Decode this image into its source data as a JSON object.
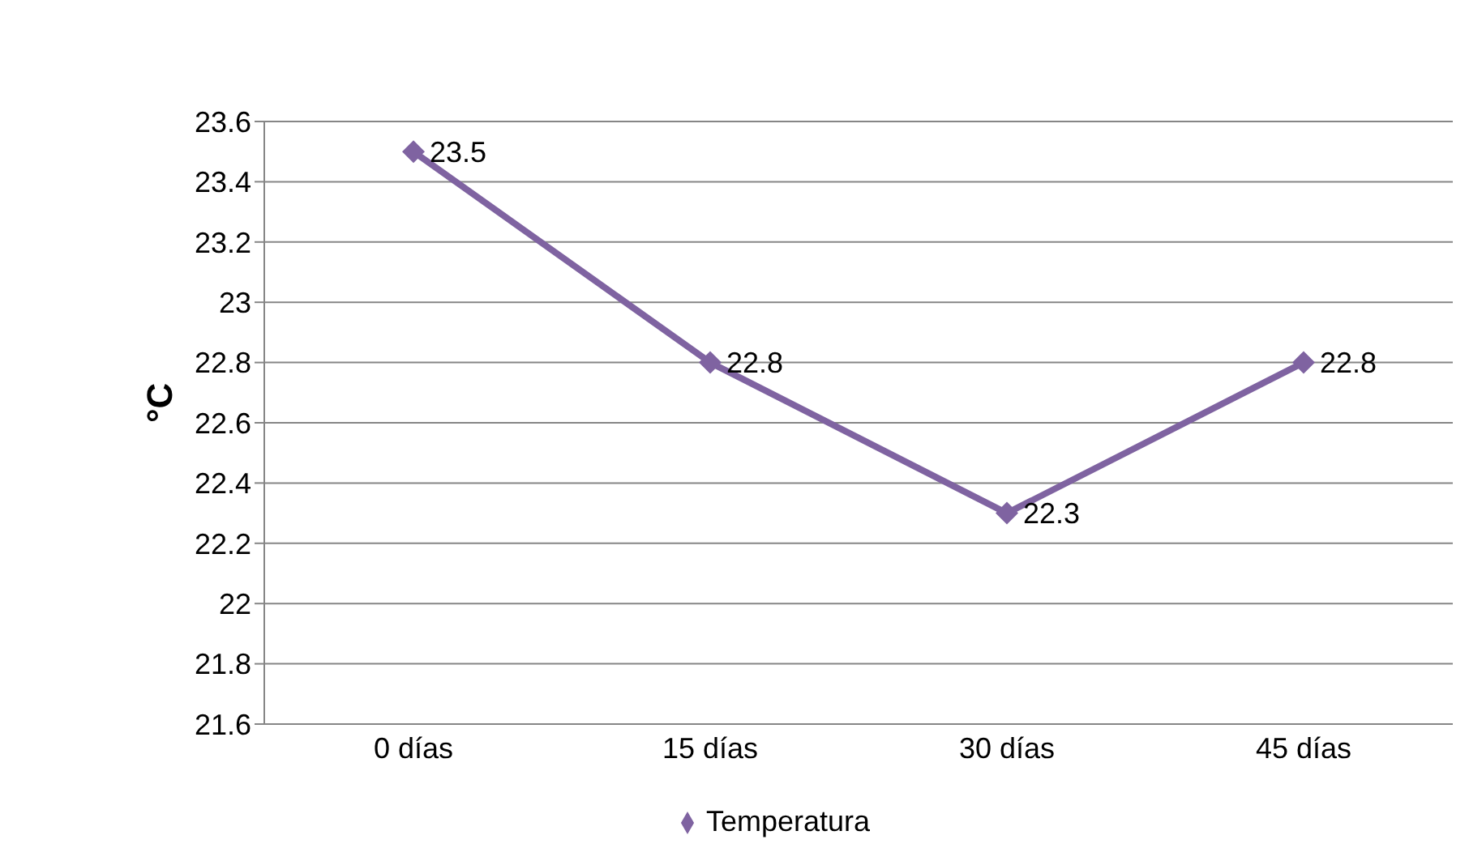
{
  "chart_data": {
    "type": "line",
    "ylabel": "°C",
    "categories": [
      "0 días",
      "15 días",
      "30 días",
      "45 días"
    ],
    "series": [
      {
        "name": "Temperatura",
        "color": "#7f63a1",
        "values": [
          23.5,
          22.8,
          22.3,
          22.8
        ]
      }
    ],
    "ylim": [
      21.6,
      23.6
    ],
    "yticks": [
      21.6,
      21.8,
      22,
      22.2,
      22.4,
      22.6,
      22.8,
      23,
      23.2,
      23.4,
      23.6
    ],
    "grid": "y",
    "legend": "bottom",
    "marker": "diamond",
    "line_style": "solid",
    "data_labels": true
  }
}
